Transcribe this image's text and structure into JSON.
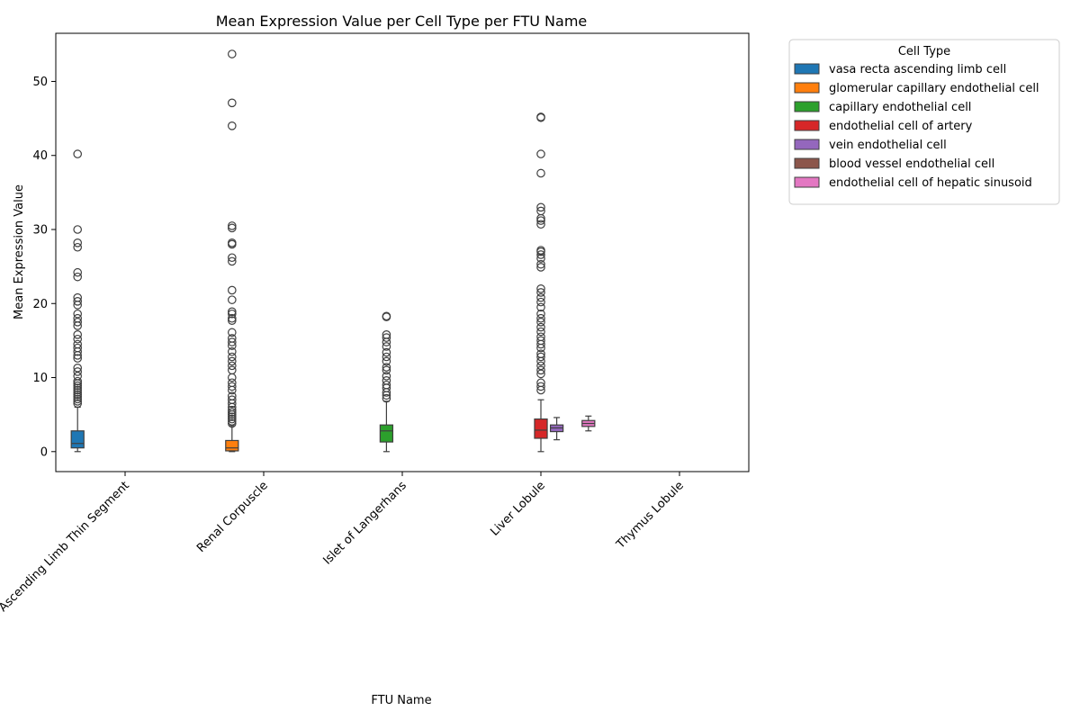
{
  "chart_data": {
    "type": "box",
    "title": "Mean Expression Value per Cell Type per FTU Name",
    "xlabel": "FTU Name",
    "ylabel": "Mean Expression Value",
    "ylim": [
      -2.7,
      56.5
    ],
    "yticks": [
      0,
      10,
      20,
      30,
      40,
      50
    ],
    "categories": [
      "Loop Of Henle Ascending Limb Thin Segment",
      "Renal Corpuscle",
      "Islet of Langerhans",
      "Liver Lobule",
      "Thymus Lobule"
    ],
    "legend": {
      "title": "Cell Type",
      "position": "outside-upper-right"
    },
    "series": [
      {
        "name": "vasa recta ascending limb cell",
        "color": "#1f77b4",
        "category": "Loop Of Henle Ascending Limb Thin Segment",
        "whisker_low": 0,
        "q1": 0.5,
        "median": 1.1,
        "q3": 2.8,
        "whisker_high": 6.0,
        "outliers": [
          6.5,
          6.8,
          7.1,
          7.4,
          7.7,
          8.0,
          8.3,
          8.6,
          8.9,
          9.2,
          9.5,
          10.2,
          10.8,
          11.3,
          12.6,
          13.0,
          13.5,
          14.0,
          14.5,
          15.2,
          15.8,
          17.0,
          17.5,
          18.0,
          18.6,
          19.8,
          20.3,
          20.8,
          23.6,
          24.2,
          27.6,
          28.2,
          30.0,
          40.2
        ]
      },
      {
        "name": "glomerular capillary endothelial cell",
        "color": "#ff7f0e",
        "category": "Renal Corpuscle",
        "whisker_low": 0,
        "q1": 0.1,
        "median": 0.5,
        "q3": 1.5,
        "whisker_high": 3.5,
        "outliers": [
          3.8,
          4.1,
          4.4,
          4.7,
          5.0,
          5.3,
          5.6,
          6.0,
          6.5,
          7.0,
          7.5,
          8.3,
          8.8,
          9.3,
          10.0,
          11.0,
          11.6,
          12.2,
          12.8,
          13.5,
          14.3,
          14.8,
          15.3,
          16.1,
          17.7,
          18.0,
          18.6,
          18.9,
          20.5,
          21.8,
          25.7,
          26.2,
          28.0,
          28.2,
          30.2,
          30.5,
          44.0,
          47.1,
          53.7
        ]
      },
      {
        "name": "capillary endothelial cell",
        "color": "#2ca02c",
        "category": "Islet of Langerhans",
        "whisker_low": 0,
        "q1": 1.3,
        "median": 2.8,
        "q3": 3.6,
        "whisker_high": 6.8,
        "outliers": [
          7.2,
          7.6,
          8.0,
          8.6,
          9.0,
          9.6,
          10.2,
          11.0,
          11.4,
          12.2,
          12.8,
          13.4,
          14.2,
          14.8,
          15.4,
          15.8,
          18.2,
          18.3
        ]
      },
      {
        "name": "endothelial cell of artery",
        "color": "#d62728",
        "category": "Liver Lobule",
        "whisker_low": 0,
        "q1": 1.8,
        "median": 2.9,
        "q3": 4.4,
        "whisker_high": 7.0,
        "outliers": [
          8.3,
          8.8,
          9.3,
          10.5,
          11.0,
          11.6,
          12.2,
          12.8,
          13.2,
          14.0,
          14.5,
          15.0,
          15.5,
          16.2,
          16.8,
          17.5,
          18.0,
          18.6,
          19.5,
          20.2,
          20.8,
          21.5,
          22.0,
          24.9,
          25.3,
          26.1,
          26.6,
          27.0,
          27.2,
          30.7,
          31.2,
          31.5,
          32.5,
          33.0,
          37.6,
          40.2,
          45.1,
          45.2
        ]
      },
      {
        "name": "vein endothelial cell",
        "color": "#9467bd",
        "category": "Liver Lobule",
        "whisker_low": 1.6,
        "q1": 2.7,
        "median": 3.2,
        "q3": 3.6,
        "whisker_high": 4.6,
        "outliers": []
      },
      {
        "name": "blood vessel endothelial cell",
        "color": "#8c564b",
        "category": "Liver Lobule",
        "whisker_low": null,
        "q1": null,
        "median": null,
        "q3": null,
        "whisker_high": null,
        "outliers": []
      },
      {
        "name": "endothelial cell of hepatic sinusoid",
        "color": "#e377c2",
        "category": "Liver Lobule",
        "whisker_low": 2.8,
        "q1": 3.4,
        "median": 3.8,
        "q3": 4.2,
        "whisker_high": 4.8,
        "outliers": []
      }
    ]
  }
}
